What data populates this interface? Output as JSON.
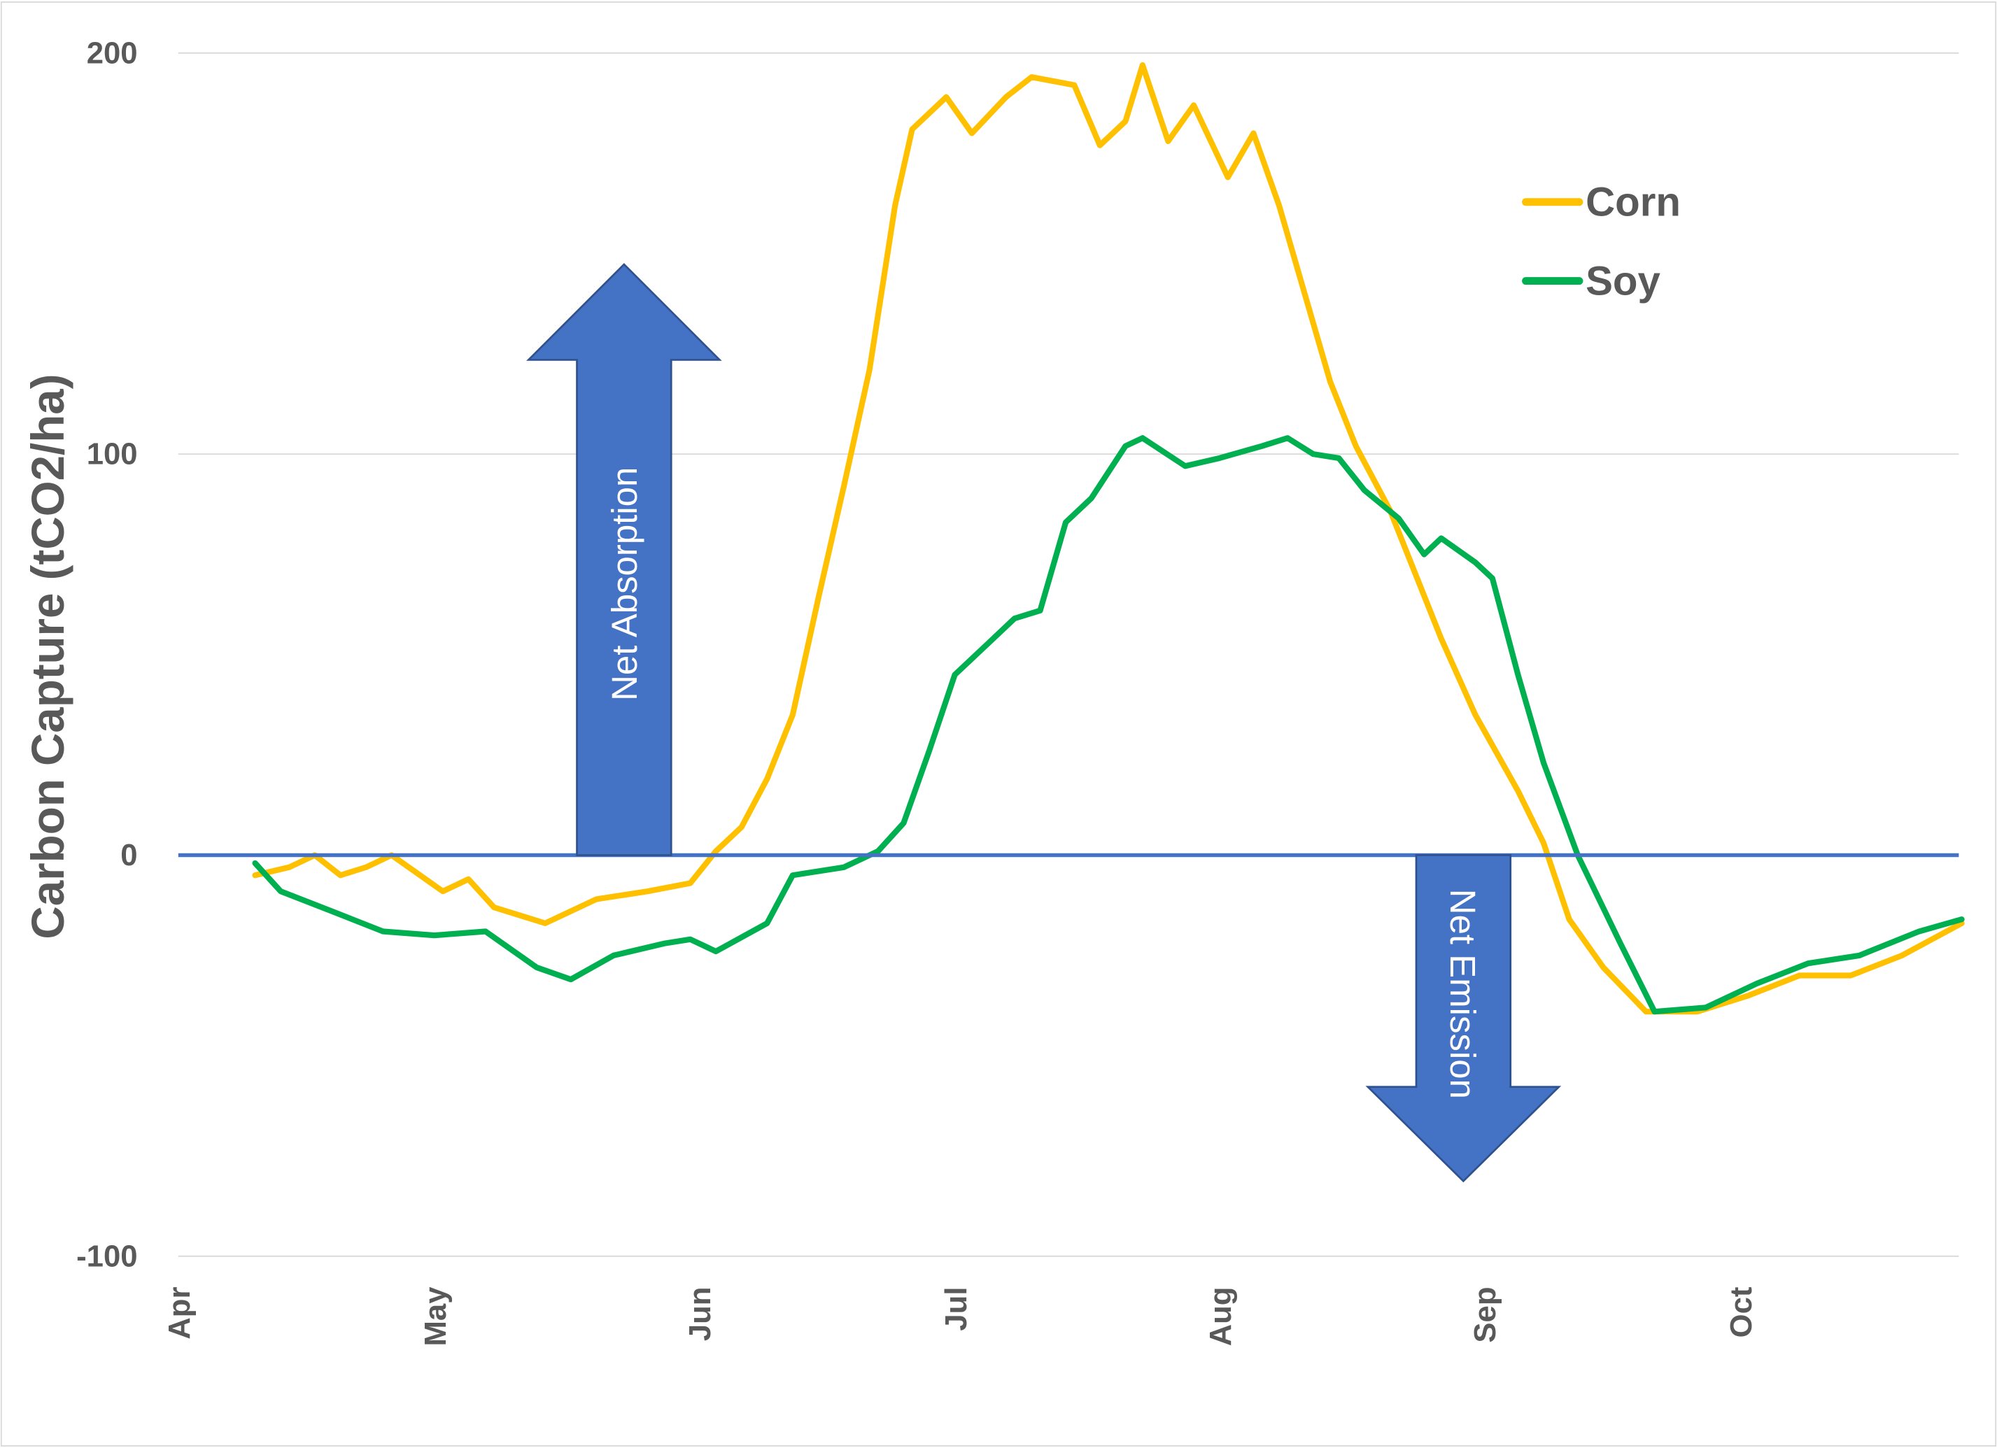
{
  "chart_data": {
    "type": "line",
    "title": "",
    "xlabel": "",
    "ylabel": "Carbon Capture (tCO2/ha)",
    "ylim": [
      -100,
      200
    ],
    "yticks": [
      200,
      100,
      0,
      -100
    ],
    "ytick_labels": [
      "200",
      "100",
      "0",
      "-100"
    ],
    "x_unit": "days since Apr 1",
    "xlim": [
      0,
      209
    ],
    "xticks": [
      0,
      30,
      61,
      91,
      122,
      153,
      183
    ],
    "xtick_labels": [
      "Apr",
      "May",
      "Jun",
      "Jul",
      "Aug",
      "Sep",
      "Oct"
    ],
    "grid": true,
    "legend_position": "top-right",
    "annotations": {
      "up": "Net Absorption",
      "down": "Net Emission"
    },
    "series": [
      {
        "name": "Corn",
        "color": "#FFC000",
        "x": [
          9,
          13,
          16,
          19,
          22,
          25,
          31,
          34,
          37,
          43,
          49,
          55,
          60,
          63,
          66,
          69,
          72,
          75,
          78,
          81,
          84,
          86,
          90,
          93,
          97,
          100,
          105,
          108,
          111,
          113,
          116,
          119,
          123,
          126,
          129,
          132,
          135,
          138,
          142,
          145,
          148,
          152,
          157,
          160,
          163,
          167,
          172,
          178,
          184,
          190,
          196,
          202,
          209
        ],
        "y": [
          -5,
          -3,
          0,
          -5,
          -3,
          0,
          -9,
          -6,
          -13,
          -17,
          -11,
          -9,
          -7,
          1,
          7,
          19,
          35,
          64,
          92,
          121,
          162,
          181,
          189,
          180,
          189,
          194,
          192,
          177,
          183,
          197,
          178,
          187,
          169,
          180,
          162,
          140,
          118,
          102,
          86,
          70,
          54,
          35,
          16,
          3,
          -16,
          -28,
          -39,
          -39,
          -35,
          -30,
          -30,
          -25,
          -17
        ]
      },
      {
        "name": "Soy",
        "color": "#00B050",
        "x": [
          9,
          12,
          18,
          24,
          30,
          36,
          42,
          46,
          51,
          57,
          60,
          63,
          69,
          72,
          78,
          82,
          85,
          88,
          91,
          95,
          98,
          101,
          104,
          107,
          111,
          113,
          118,
          122,
          127,
          130,
          133,
          136,
          139,
          143,
          146,
          148,
          152,
          154,
          157,
          160,
          164,
          169,
          173,
          179,
          185,
          191,
          197,
          204,
          209
        ],
        "y": [
          -2,
          -9,
          -14,
          -19,
          -20,
          -19,
          -28,
          -31,
          -25,
          -22,
          -21,
          -24,
          -17,
          -5,
          -3,
          1,
          8,
          26,
          45,
          53,
          59,
          61,
          83,
          89,
          102,
          104,
          97,
          99,
          102,
          104,
          100,
          99,
          91,
          84,
          75,
          79,
          73,
          69,
          45,
          23,
          0,
          -22,
          -39,
          -38,
          -32,
          -27,
          -25,
          -19,
          -16
        ]
      }
    ]
  }
}
